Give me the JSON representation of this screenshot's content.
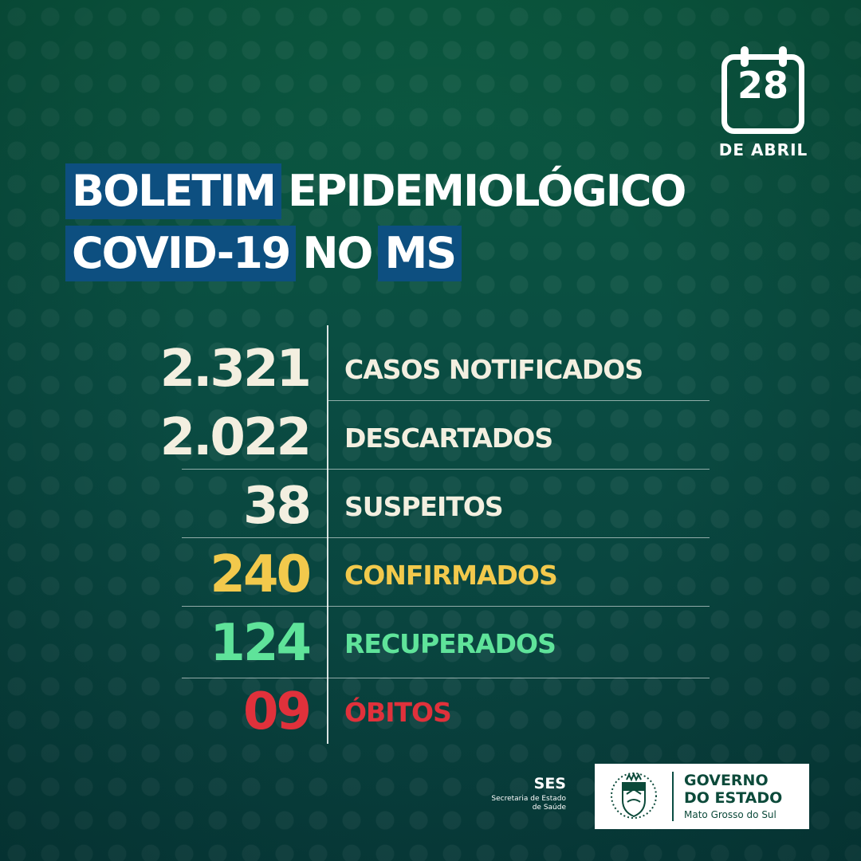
{
  "calendar": {
    "day": "28",
    "month": "DE ABRIL"
  },
  "title": {
    "line1": [
      "BOLETIM",
      "EPIDEMIOLÓGICO"
    ],
    "line2": [
      "COVID-19",
      "NO",
      "MS"
    ]
  },
  "stats": [
    {
      "value": "2.321",
      "label": "CASOS NOTIFICADOS",
      "color": "#f3efe0"
    },
    {
      "value": "2.022",
      "label": "DESCARTADOS",
      "color": "#f3efe0"
    },
    {
      "value": "38",
      "label": "SUSPEITOS",
      "color": "#f3efe0"
    },
    {
      "value": "240",
      "label": "CONFIRMADOS",
      "color": "#f2c94c"
    },
    {
      "value": "124",
      "label": "RECUPERADOS",
      "color": "#5fe39a"
    },
    {
      "value": "09",
      "label": "ÓBITOS",
      "color": "#e0313b"
    }
  ],
  "footer": {
    "ses": {
      "acronym": "SES",
      "line1": "Secretaria de Estado",
      "line2": "de Saúde"
    },
    "government": {
      "line1": "GOVERNO",
      "line2": "DO ESTADO",
      "line3": "Mato Grosso do Sul"
    }
  },
  "colors": {
    "highlight": "#0d4f80",
    "background_top": "#0b5a3f",
    "background_bottom": "#083d3c"
  }
}
